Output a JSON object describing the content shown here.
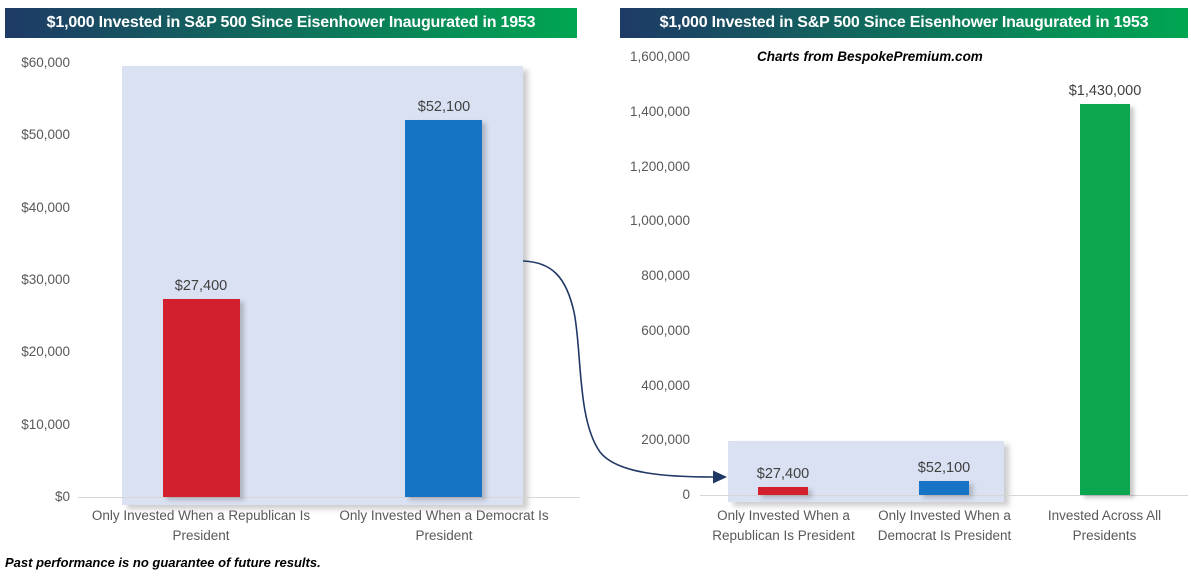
{
  "chart_data": [
    {
      "type": "bar",
      "title": "$1,000 Invested in S&P 500 Since Eisenhower Inaugurated in 1953",
      "categories": [
        "Only Invested When a Republican Is President",
        "Only Invested When a Democrat Is President"
      ],
      "values": [
        27400,
        52100
      ],
      "data_labels": [
        "$27,400",
        "$52,100"
      ],
      "bar_colors": [
        "#d2202e",
        "#1673c5"
      ],
      "xlabel": "",
      "ylabel": "",
      "ylim": [
        0,
        60000
      ],
      "y_tick_labels": [
        "$0",
        "$10,000",
        "$20,000",
        "$30,000",
        "$40,000",
        "$50,000",
        "$60,000"
      ],
      "grid": false,
      "legend": false,
      "highlight_note": "light blue box highlights both bars"
    },
    {
      "type": "bar",
      "title": "$1,000 Invested in S&P 500 Since Eisenhower Inaugurated in 1953",
      "categories": [
        "Only Invested When a Republican Is President",
        "Only Invested When a Democrat Is President",
        "Invested Across All Presidents"
      ],
      "values": [
        27400,
        52100,
        1430000
      ],
      "data_labels": [
        "$27,400",
        "$52,100",
        "$1,430,000"
      ],
      "bar_colors": [
        "#d2202e",
        "#1673c5",
        "#0ba64e"
      ],
      "xlabel": "",
      "ylabel": "",
      "ylim": [
        0,
        1600000
      ],
      "y_tick_labels": [
        "0",
        "200,000",
        "400,000",
        "600,000",
        "800,000",
        "1,000,000",
        "1,200,000",
        "1,400,000",
        "1,600,000"
      ],
      "grid": false,
      "legend": false,
      "annotation": "Charts from BespokePremium.com",
      "highlight_note": "light blue box highlights Republican and Democrat bars near zero"
    }
  ],
  "annotations": {
    "source": "Charts from BespokePremium.com",
    "disclaimer": "Past performance is no guarantee of future results."
  },
  "colors": {
    "title_gradient_start": "#1e3a66",
    "title_gradient_end": "#00a651",
    "republican_red": "#d2202e",
    "democrat_blue": "#1673c5",
    "all_presidents_green": "#0ba64e",
    "highlight_fill": "#d9e1f2",
    "axis_text": "#595959",
    "axis_line": "#d6d6d6",
    "data_label_text": "#404040",
    "arrow": "#203864"
  }
}
